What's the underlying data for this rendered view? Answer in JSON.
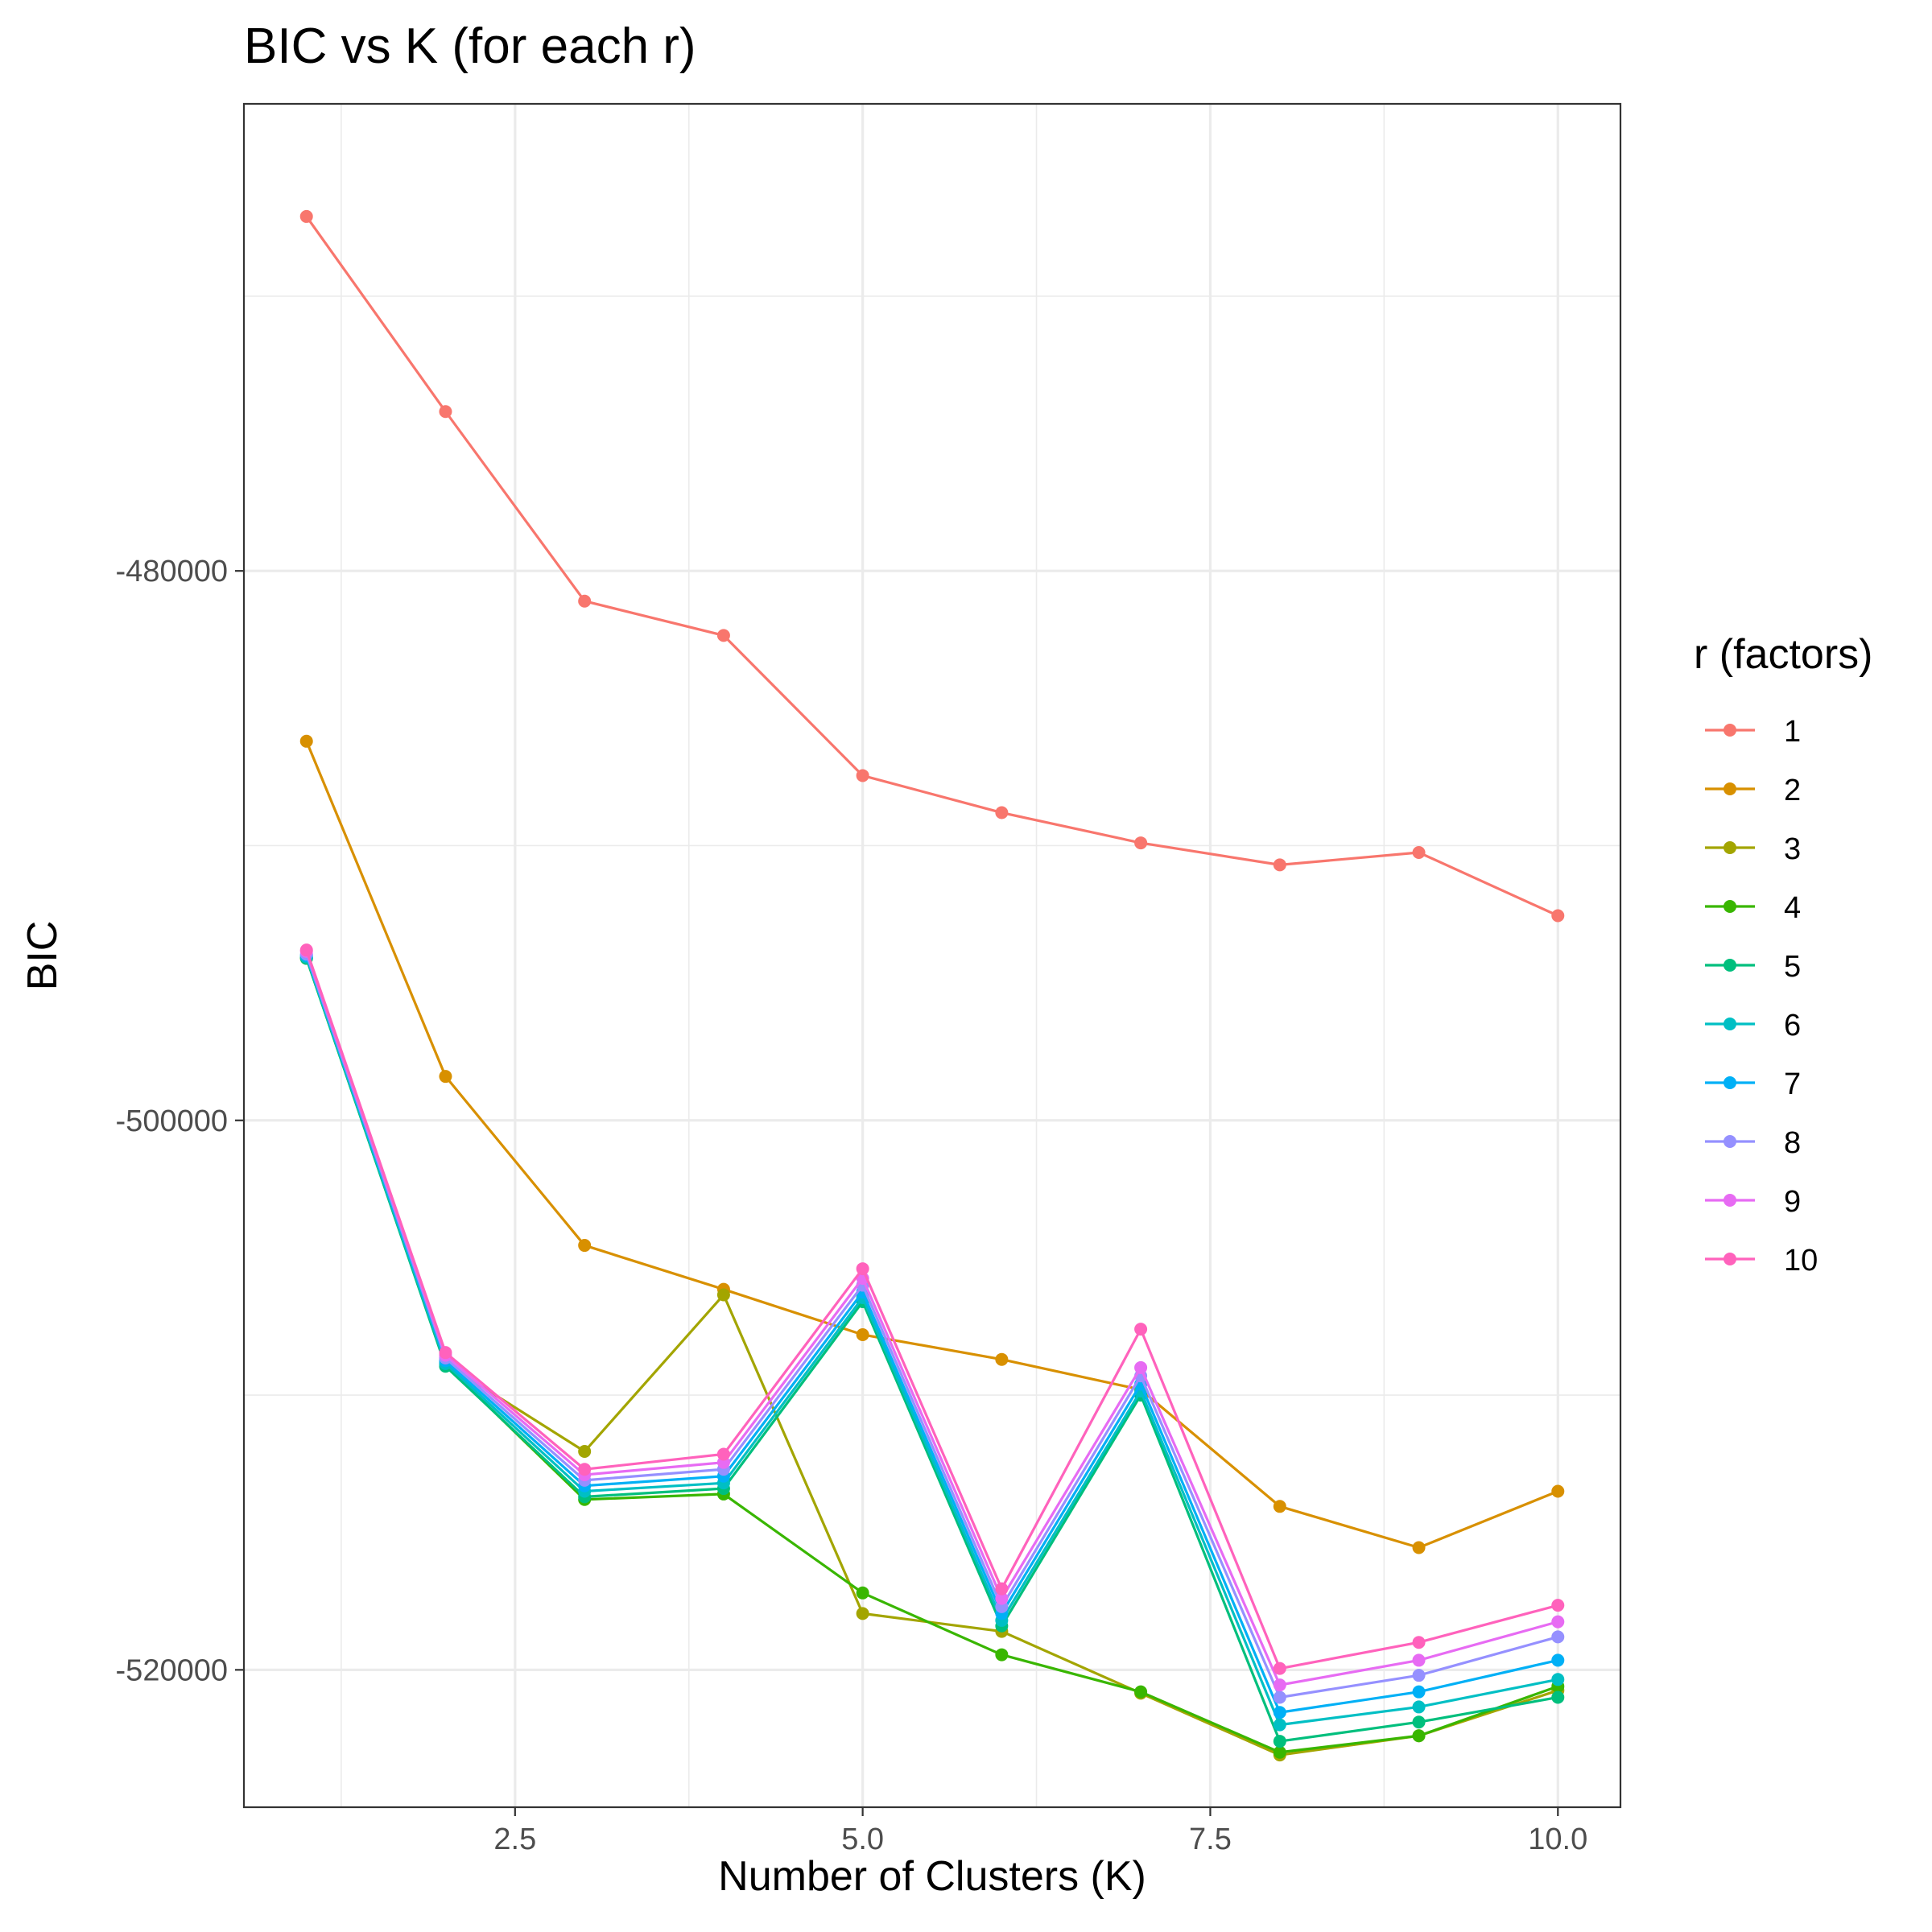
{
  "chart_data": {
    "type": "line",
    "title": "BIC vs K (for each r)",
    "xlabel": "Number of Clusters (K)",
    "ylabel": "BIC",
    "x": [
      1,
      2,
      3,
      4,
      5,
      6,
      7,
      8,
      9,
      10
    ],
    "xlim": [
      0.55,
      10.45
    ],
    "ylim": [
      -525000,
      -463000
    ],
    "xticks": [
      2.5,
      5.0,
      7.5,
      10.0
    ],
    "xtick_labels": [
      "2.5",
      "5.0",
      "7.5",
      "10.0"
    ],
    "yticks": [
      -480000,
      -500000,
      -520000
    ],
    "ytick_labels": [
      "-480000",
      "-500000",
      "-520000"
    ],
    "grid": true,
    "legend": {
      "title": "r (factors)",
      "position": "right"
    },
    "series": [
      {
        "name": "1",
        "color": "#F8766D",
        "values": [
          -467100,
          -474200,
          -481100,
          -482350,
          -487450,
          -488800,
          -489900,
          -490700,
          -490250,
          -492550
        ]
      },
      {
        "name": "2",
        "color": "#D89000",
        "values": [
          -486200,
          -498400,
          -504550,
          -506150,
          -507800,
          -508700,
          -509800,
          -514050,
          -515550,
          -513500
        ]
      },
      {
        "name": "3",
        "color": "#A3A500",
        "values": [
          -494100,
          -508850,
          -512050,
          -506350,
          -517950,
          -518600,
          -520850,
          -523100,
          -522400,
          -520750
        ]
      },
      {
        "name": "4",
        "color": "#39B600",
        "values": [
          -494100,
          -508900,
          -513800,
          -513600,
          -517200,
          -519450,
          -520800,
          -523000,
          -522400,
          -520600
        ]
      },
      {
        "name": "5",
        "color": "#00BF7D",
        "values": [
          -494100,
          -508950,
          -513700,
          -513400,
          -506600,
          -518400,
          -510000,
          -522600,
          -521900,
          -521000
        ]
      },
      {
        "name": "6",
        "color": "#00BFC4",
        "values": [
          -494050,
          -508850,
          -513500,
          -513200,
          -506450,
          -518200,
          -509850,
          -522000,
          -521350,
          -520350
        ]
      },
      {
        "name": "7",
        "color": "#00B0F6",
        "values": [
          -494000,
          -508750,
          -513300,
          -512950,
          -506250,
          -517950,
          -509600,
          -521550,
          -520800,
          -519650
        ]
      },
      {
        "name": "8",
        "color": "#9590FF",
        "values": [
          -493950,
          -508650,
          -513100,
          -512700,
          -506000,
          -517700,
          -509300,
          -521000,
          -520200,
          -518800
        ]
      },
      {
        "name": "9",
        "color": "#E76BF3",
        "values": [
          -493850,
          -508550,
          -512900,
          -512450,
          -505750,
          -517400,
          -509000,
          -520550,
          -519650,
          -518250
        ]
      },
      {
        "name": "10",
        "color": "#FF62BC",
        "values": [
          -493800,
          -508450,
          -512700,
          -512150,
          -505400,
          -517050,
          -507600,
          -519950,
          -519000,
          -517650
        ]
      }
    ]
  }
}
